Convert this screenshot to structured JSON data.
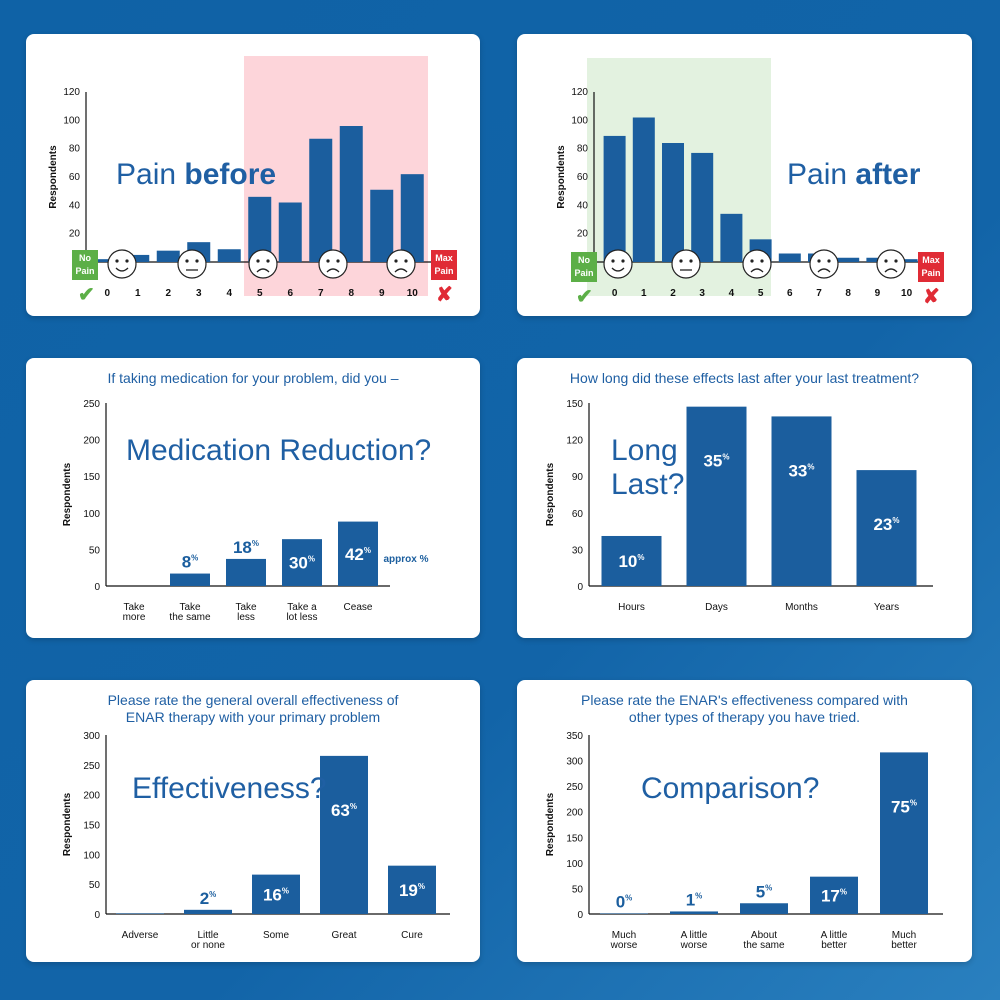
{
  "colors": {
    "bar": "#1b5e9e",
    "title": "#1f5fa3",
    "shade_red": "#fdd5da",
    "shade_green": "#e3f2e0",
    "green": "#5caf47",
    "red": "#e02b35"
  },
  "pain_scale": {
    "no_pain_label": "No\nPain",
    "max_pain_label": "Max\nPain",
    "ok_icon": "check-mark-icon",
    "bad_icon": "cross-mark-icon",
    "faces": [
      "smiling-face-icon",
      "neutral-face-icon",
      "grimace-face-icon",
      "crying-face-icon",
      "distressed-face-icon"
    ]
  },
  "chart_data": [
    {
      "id": "pain-before",
      "type": "bar",
      "big_label_parts": [
        "Pain ",
        "before"
      ],
      "ylabel": "Respondents",
      "ylim": [
        0,
        120
      ],
      "yticks": [
        0,
        20,
        40,
        60,
        80,
        100,
        120
      ],
      "categories": [
        "0",
        "1",
        "2",
        "3",
        "4",
        "5",
        "6",
        "7",
        "8",
        "9",
        "10"
      ],
      "values": [
        2,
        5,
        8,
        14,
        9,
        46,
        42,
        87,
        96,
        51,
        62
      ],
      "shaded_region": "5-10",
      "grid": false
    },
    {
      "id": "pain-after",
      "type": "bar",
      "big_label_parts": [
        "Pain ",
        "after"
      ],
      "ylabel": "Respondents",
      "ylim": [
        0,
        120
      ],
      "yticks": [
        0,
        20,
        40,
        60,
        80,
        100,
        120
      ],
      "categories": [
        "0",
        "1",
        "2",
        "3",
        "4",
        "5",
        "6",
        "7",
        "8",
        "9",
        "10"
      ],
      "values": [
        89,
        102,
        84,
        77,
        34,
        16,
        6,
        6,
        3,
        3,
        2
      ],
      "shaded_region": "0-5",
      "grid": false
    },
    {
      "id": "medication",
      "type": "bar",
      "title": "If taking medication for your problem, did you –",
      "big_label": "Medication Reduction?",
      "ylabel": "Respondents",
      "ylim": [
        0,
        250
      ],
      "yticks": [
        0,
        50,
        100,
        150,
        200,
        250
      ],
      "categories": [
        "Take\nmore",
        "Take\nthe same",
        "Take\nless",
        "Take a\nlot less",
        "Cease"
      ],
      "values": [
        0,
        17,
        37,
        64,
        88
      ],
      "percent_labels": [
        "",
        "8",
        "18",
        "30",
        "42"
      ],
      "note": "approx %",
      "grid": false
    },
    {
      "id": "long-last",
      "type": "bar",
      "title": "How long did these effects last after your last treatment?",
      "big_label": "Long\nLast?",
      "ylabel": "Respondents",
      "ylim": [
        0,
        150
      ],
      "yticks": [
        0,
        30,
        60,
        90,
        120,
        150
      ],
      "categories": [
        "Hours",
        "Days",
        "Months",
        "Years"
      ],
      "values": [
        41,
        147,
        139,
        95
      ],
      "percent_labels": [
        "10",
        "35",
        "33",
        "23"
      ],
      "grid": false
    },
    {
      "id": "effectiveness",
      "type": "bar",
      "title": "Please rate the general overall effectiveness of\nENAR therapy with your primary problem",
      "big_label": "Effectiveness?",
      "ylabel": "Respondents",
      "ylim": [
        0,
        300
      ],
      "yticks": [
        0,
        50,
        100,
        150,
        200,
        250,
        300
      ],
      "categories": [
        "Adverse",
        "Little\nor none",
        "Some",
        "Great",
        "Cure"
      ],
      "values": [
        1,
        7,
        66,
        265,
        81
      ],
      "percent_labels": [
        "",
        "2",
        "16",
        "63",
        "19"
      ],
      "grid": false
    },
    {
      "id": "comparison",
      "type": "bar",
      "title": "Please rate the ENAR's effectiveness compared with\nother types of therapy you have tried.",
      "big_label": "Comparison?",
      "ylabel": "Respondents",
      "ylim": [
        0,
        350
      ],
      "yticks": [
        0,
        50,
        100,
        150,
        200,
        250,
        300,
        350
      ],
      "categories": [
        "Much\nworse",
        "A little\nworse",
        "About\nthe same",
        "A little\nbetter",
        "Much\nbetter"
      ],
      "values": [
        1,
        5,
        21,
        73,
        316
      ],
      "percent_labels": [
        "0",
        "1",
        "5",
        "17",
        "75"
      ],
      "grid": false
    }
  ]
}
